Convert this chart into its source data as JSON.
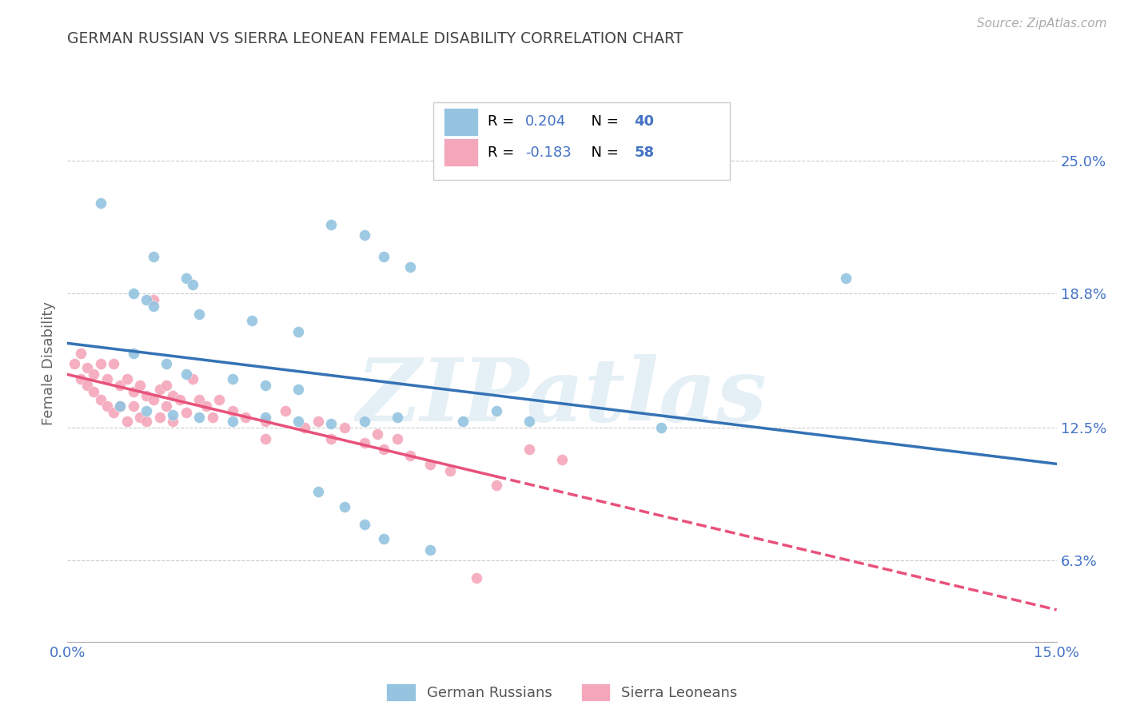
{
  "title": "GERMAN RUSSIAN VS SIERRA LEONEAN FEMALE DISABILITY CORRELATION CHART",
  "source": "Source: ZipAtlas.com",
  "ylabel": "Female Disability",
  "xlim": [
    0.0,
    0.15
  ],
  "ylim": [
    0.025,
    0.285
  ],
  "yticks": [
    0.063,
    0.125,
    0.188,
    0.25
  ],
  "ytick_labels": [
    "6.3%",
    "12.5%",
    "18.8%",
    "25.0%"
  ],
  "xticks": [
    0.0,
    0.03,
    0.06,
    0.09,
    0.12,
    0.15
  ],
  "xtick_labels": [
    "0.0%",
    "",
    "",
    "",
    "",
    "15.0%"
  ],
  "watermark": "ZIPatlas",
  "blue_color": "#94c4e0",
  "pink_color": "#f4a7bb",
  "blue_line_color": "#3472b5",
  "pink_line_color": "#e8527a",
  "grid_color": "#cccccc",
  "title_color": "#444444",
  "axis_label_color": "#666666",
  "tick_color": "#4472c4",
  "value_color": "#4472c4",
  "blue_scatter": [
    [
      0.005,
      0.23
    ],
    [
      0.013,
      0.205
    ],
    [
      0.018,
      0.195
    ],
    [
      0.019,
      0.192
    ],
    [
      0.01,
      0.188
    ],
    [
      0.012,
      0.185
    ],
    [
      0.013,
      0.182
    ],
    [
      0.02,
      0.178
    ],
    [
      0.028,
      0.175
    ],
    [
      0.035,
      0.17
    ],
    [
      0.04,
      0.22
    ],
    [
      0.045,
      0.215
    ],
    [
      0.048,
      0.205
    ],
    [
      0.052,
      0.2
    ],
    [
      0.01,
      0.16
    ],
    [
      0.015,
      0.155
    ],
    [
      0.018,
      0.15
    ],
    [
      0.025,
      0.148
    ],
    [
      0.03,
      0.145
    ],
    [
      0.035,
      0.143
    ],
    [
      0.008,
      0.135
    ],
    [
      0.012,
      0.133
    ],
    [
      0.016,
      0.131
    ],
    [
      0.02,
      0.13
    ],
    [
      0.025,
      0.128
    ],
    [
      0.03,
      0.13
    ],
    [
      0.035,
      0.128
    ],
    [
      0.04,
      0.127
    ],
    [
      0.045,
      0.128
    ],
    [
      0.05,
      0.13
    ],
    [
      0.06,
      0.128
    ],
    [
      0.065,
      0.133
    ],
    [
      0.07,
      0.128
    ],
    [
      0.09,
      0.125
    ],
    [
      0.038,
      0.095
    ],
    [
      0.042,
      0.088
    ],
    [
      0.045,
      0.08
    ],
    [
      0.048,
      0.073
    ],
    [
      0.055,
      0.068
    ],
    [
      0.118,
      0.195
    ]
  ],
  "pink_scatter": [
    [
      0.001,
      0.155
    ],
    [
      0.002,
      0.16
    ],
    [
      0.002,
      0.148
    ],
    [
      0.003,
      0.153
    ],
    [
      0.003,
      0.145
    ],
    [
      0.004,
      0.15
    ],
    [
      0.004,
      0.142
    ],
    [
      0.005,
      0.155
    ],
    [
      0.005,
      0.138
    ],
    [
      0.006,
      0.148
    ],
    [
      0.006,
      0.135
    ],
    [
      0.007,
      0.155
    ],
    [
      0.007,
      0.132
    ],
    [
      0.008,
      0.145
    ],
    [
      0.008,
      0.135
    ],
    [
      0.009,
      0.148
    ],
    [
      0.009,
      0.128
    ],
    [
      0.01,
      0.142
    ],
    [
      0.01,
      0.135
    ],
    [
      0.011,
      0.145
    ],
    [
      0.011,
      0.13
    ],
    [
      0.012,
      0.14
    ],
    [
      0.012,
      0.128
    ],
    [
      0.013,
      0.185
    ],
    [
      0.013,
      0.138
    ],
    [
      0.014,
      0.143
    ],
    [
      0.014,
      0.13
    ],
    [
      0.015,
      0.145
    ],
    [
      0.015,
      0.135
    ],
    [
      0.016,
      0.14
    ],
    [
      0.016,
      0.128
    ],
    [
      0.017,
      0.138
    ],
    [
      0.018,
      0.132
    ],
    [
      0.019,
      0.148
    ],
    [
      0.02,
      0.138
    ],
    [
      0.021,
      0.135
    ],
    [
      0.022,
      0.13
    ],
    [
      0.023,
      0.138
    ],
    [
      0.025,
      0.133
    ],
    [
      0.027,
      0.13
    ],
    [
      0.03,
      0.128
    ],
    [
      0.03,
      0.12
    ],
    [
      0.033,
      0.133
    ],
    [
      0.036,
      0.125
    ],
    [
      0.038,
      0.128
    ],
    [
      0.04,
      0.12
    ],
    [
      0.042,
      0.125
    ],
    [
      0.045,
      0.118
    ],
    [
      0.047,
      0.122
    ],
    [
      0.048,
      0.115
    ],
    [
      0.05,
      0.12
    ],
    [
      0.052,
      0.112
    ],
    [
      0.055,
      0.108
    ],
    [
      0.058,
      0.105
    ],
    [
      0.065,
      0.098
    ],
    [
      0.07,
      0.115
    ],
    [
      0.075,
      0.11
    ],
    [
      0.062,
      0.055
    ]
  ]
}
